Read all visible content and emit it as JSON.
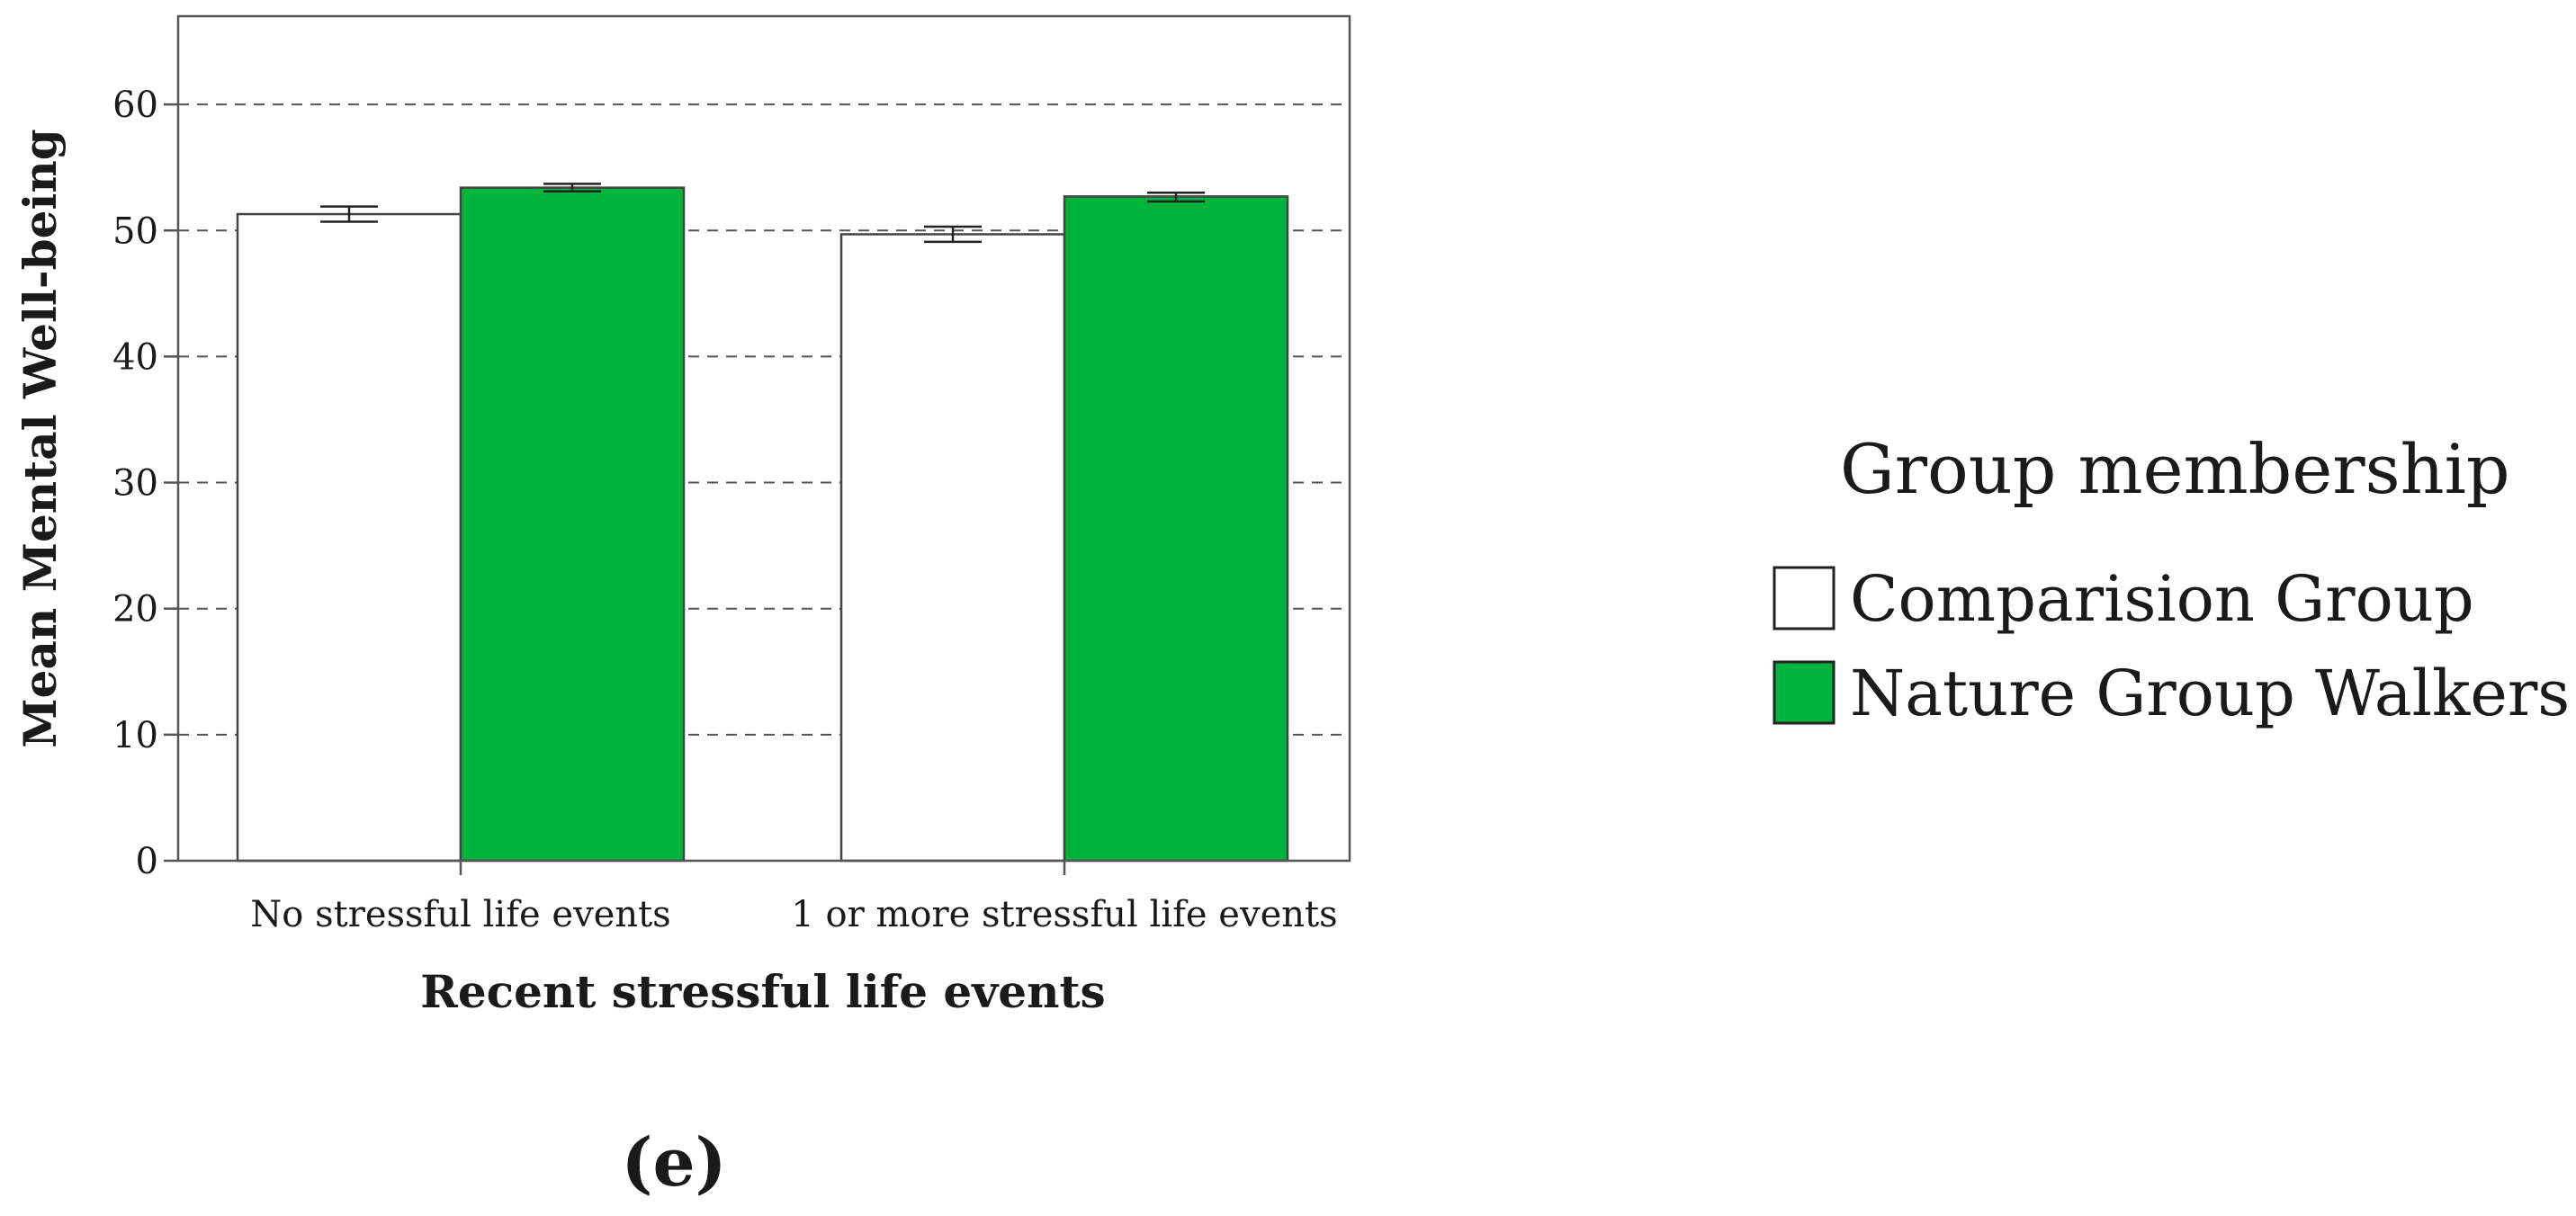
{
  "chart_data": {
    "type": "bar",
    "xlabel": "Recent stressful life events",
    "ylabel": "Mean Mental Well-being",
    "ylim": [
      0,
      67
    ],
    "yticks": [
      0,
      10,
      20,
      30,
      40,
      50,
      60
    ],
    "grid": "horizontal dashed",
    "categories": [
      "No stressful life events",
      "1 or more stressful life events"
    ],
    "series": [
      {
        "name": "Comparision Group",
        "color": "#ffffff",
        "values": [
          51.3,
          49.7
        ],
        "error_low": [
          50.7,
          49.1
        ],
        "error_high": [
          51.9,
          50.3
        ]
      },
      {
        "name": "Nature Group Walkers",
        "color": "#00b33c",
        "values": [
          53.4,
          52.7
        ],
        "error_low": [
          53.1,
          52.3
        ],
        "error_high": [
          53.7,
          53.0
        ]
      }
    ],
    "legend": {
      "title": "Group membership",
      "placement": "right"
    },
    "panel_label": "(e)"
  }
}
